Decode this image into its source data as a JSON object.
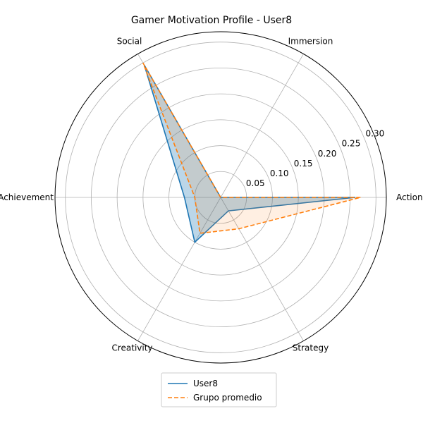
{
  "chart_data": {
    "type": "radar",
    "title": "Gamer Motivation Profile - User8",
    "categories": [
      "Action",
      "Immersion",
      "Social",
      "Achievement",
      "Creativity",
      "Strategy"
    ],
    "radial_ticks": [
      "0.05",
      "0.10",
      "0.15",
      "0.20",
      "0.25",
      "0.30"
    ],
    "rlim": [
      0,
      0.32
    ],
    "grid": true,
    "legend_position": "bottom",
    "series": [
      {
        "name": "User8",
        "values": [
          0.26,
          0.0,
          0.295,
          0.07,
          0.1,
          0.03
        ],
        "color": "#1f77b4",
        "line_style": "solid"
      },
      {
        "name": "Grupo promedio",
        "values": [
          0.27,
          0.0,
          0.3,
          0.05,
          0.08,
          0.07
        ],
        "color": "#ff7f0e",
        "line_style": "dashed"
      }
    ]
  }
}
